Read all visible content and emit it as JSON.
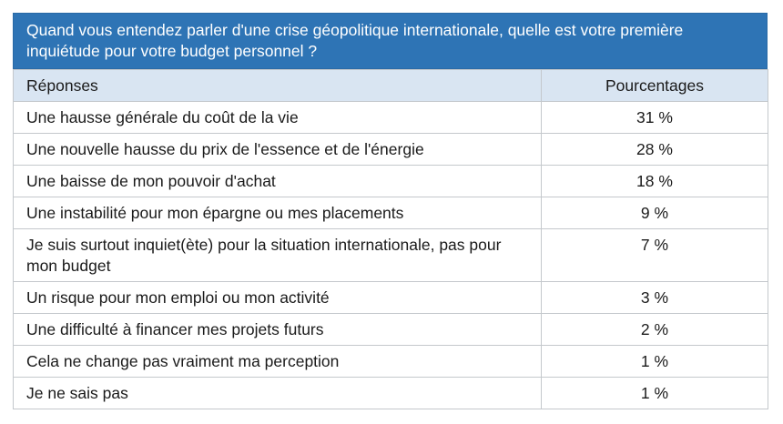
{
  "question": "Quand vous entendez parler d'une crise géopolitique internationale, quelle est votre première inquiétude pour votre budget personnel ?",
  "headers": {
    "responses": "Réponses",
    "percentages": "Pourcentages"
  },
  "rows": [
    {
      "label": "Une hausse générale du coût de la vie",
      "value": "31 %"
    },
    {
      "label": "Une nouvelle hausse du prix de l'essence et de l'énergie",
      "value": "28 %"
    },
    {
      "label": "Une baisse de mon pouvoir d'achat",
      "value": "18 %"
    },
    {
      "label": "Une instabilité pour mon épargne ou mes placements",
      "value": "9 %"
    },
    {
      "label": "Je suis surtout inquiet(ète) pour la situation internationale, pas pour mon budget",
      "value": "7 %"
    },
    {
      "label": "Un risque pour mon emploi ou mon activité",
      "value": "3 %"
    },
    {
      "label": "Une difficulté à financer mes projets futurs",
      "value": "2 %"
    },
    {
      "label": "Cela ne change pas vraiment ma perception",
      "value": "1 %"
    },
    {
      "label": "Je ne sais pas",
      "value": "1 %"
    }
  ],
  "colors": {
    "question_bg": "#2e74b5",
    "header_bg": "#d9e5f2",
    "border": "#c4c8cc"
  }
}
